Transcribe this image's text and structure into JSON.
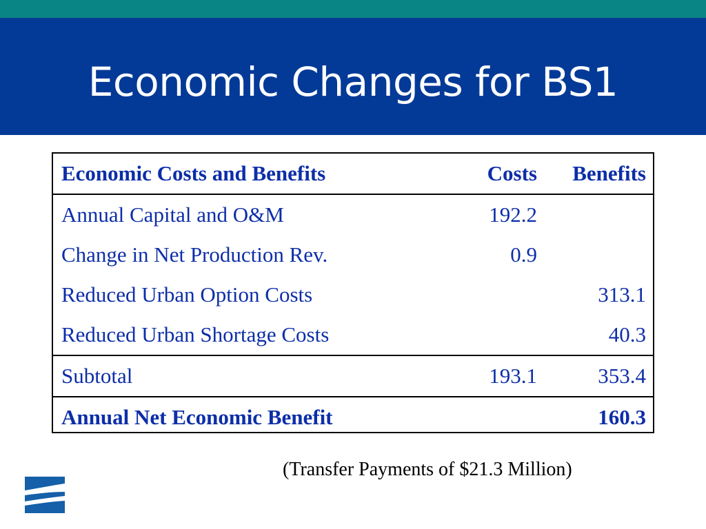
{
  "slide": {
    "title": "Economic Changes for BS1"
  },
  "table": {
    "headers": [
      "Economic Costs and Benefits",
      "Costs",
      "Benefits"
    ],
    "rows": [
      {
        "label": "Annual Capital and O&M",
        "costs": "192.2",
        "benefits": ""
      },
      {
        "label": "Change in Net Production Rev.",
        "costs": "0.9",
        "benefits": ""
      },
      {
        "label": "Reduced Urban Option Costs",
        "costs": "",
        "benefits": "313.1"
      },
      {
        "label": "Reduced Urban Shortage Costs",
        "costs": "",
        "benefits": "40.3"
      }
    ],
    "subtotal": {
      "label": "Subtotal",
      "costs": "193.1",
      "benefits": "353.4"
    },
    "net": {
      "label": "Annual Net Economic Benefit",
      "costs": "",
      "benefits": "160.3"
    }
  },
  "note": "(Transfer Payments of $21.3 Million)",
  "colors": {
    "title_band": "#033a97",
    "top_strip": "#0a8585",
    "table_text": "#0d2ea8",
    "logo": "#1560a8"
  },
  "logo": {
    "icon": "wave-logo-icon"
  }
}
